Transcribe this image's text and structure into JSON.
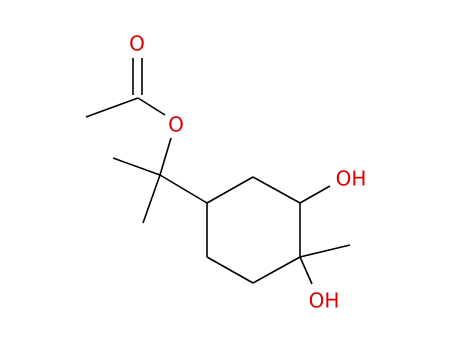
{
  "nodes": [
    {
      "label": "O"
    },
    {
      "label": "O"
    },
    {
      "label": "OH"
    },
    {
      "label": "OH"
    }
  ]
}
